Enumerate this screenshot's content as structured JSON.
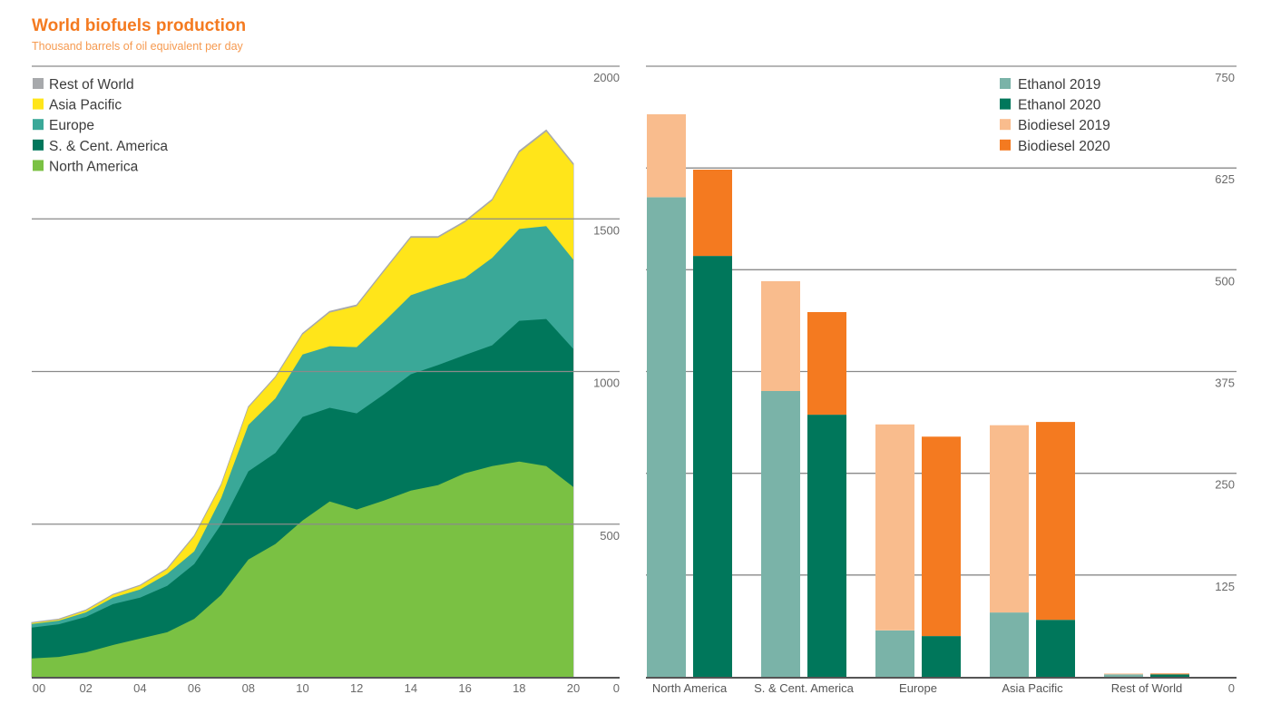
{
  "title": "World biofuels production",
  "subtitle": "Thousand barrels of oil equivalent per day",
  "colors": {
    "rest_of_world": "#a7a9ac",
    "asia_pacific": "#ffe51a",
    "europe": "#3aa898",
    "s_cent_america": "#00775b",
    "north_america": "#7ac143",
    "ethanol_2019": "#7ab3a8",
    "ethanol_2020": "#00775b",
    "biodiesel_2019": "#f9bc8d",
    "biodiesel_2020": "#f47a20",
    "title": "#f47a20"
  },
  "chart_data": [
    {
      "type": "area",
      "stacked": true,
      "x": [
        2000,
        2001,
        2002,
        2003,
        2004,
        2005,
        2006,
        2007,
        2008,
        2009,
        2010,
        2011,
        2012,
        2013,
        2014,
        2015,
        2016,
        2017,
        2018,
        2019,
        2020
      ],
      "xtick_labels": [
        "00",
        "02",
        "04",
        "06",
        "08",
        "10",
        "12",
        "14",
        "16",
        "18",
        "20"
      ],
      "ylim": [
        0,
        2000
      ],
      "yticks": [
        "0",
        "500",
        "1000",
        "1500",
        "2000"
      ],
      "ytick_values": [
        0,
        500,
        1000,
        1500,
        2000
      ],
      "y_axis_side": "right",
      "grid": true,
      "legend_position": "top-left",
      "series": [
        {
          "name": "North America",
          "key": "north_america",
          "values": [
            60,
            65,
            80,
            104,
            125,
            146,
            190,
            268,
            384,
            435,
            512,
            574,
            548,
            577,
            610,
            628,
            667,
            690,
            705,
            690,
            622
          ]
        },
        {
          "name": "S. & Cent. America",
          "key": "s_cent_america",
          "values": [
            101,
            107,
            116,
            134,
            134,
            152,
            179,
            232,
            289,
            298,
            339,
            307,
            315,
            348,
            381,
            393,
            387,
            396,
            461,
            482,
            452
          ]
        },
        {
          "name": "Europe",
          "key": "europe",
          "values": [
            12,
            12,
            15,
            21,
            27,
            39,
            42,
            86,
            152,
            179,
            205,
            202,
            217,
            238,
            259,
            259,
            253,
            286,
            301,
            304,
            292
          ]
        },
        {
          "name": "Asia Pacific",
          "key": "asia_pacific",
          "values": [
            3,
            3,
            6,
            9,
            12,
            15,
            48,
            42,
            57,
            68,
            65,
            110,
            134,
            164,
            188,
            158,
            182,
            188,
            250,
            310,
            310
          ]
        },
        {
          "name": "Rest of World",
          "key": "rest_of_world",
          "values": [
            2,
            2,
            2,
            2,
            2,
            3,
            3,
            3,
            3,
            3,
            4,
            4,
            4,
            4,
            4,
            4,
            4,
            4,
            5,
            5,
            5
          ]
        }
      ],
      "legend": [
        "Rest of World",
        "Asia Pacific",
        "Europe",
        "S. & Cent. America",
        "North America"
      ]
    },
    {
      "type": "bar",
      "stacked": true,
      "categories": [
        "North America",
        "S. & Cent. America",
        "Europe",
        "Asia Pacific",
        "Rest of World"
      ],
      "ylim": [
        0,
        750
      ],
      "yticks": [
        "0",
        "125",
        "250",
        "375",
        "500",
        "625",
        "750"
      ],
      "ytick_values": [
        0,
        125,
        250,
        375,
        500,
        625,
        750
      ],
      "y_axis_side": "right",
      "grid": true,
      "legend_position": "top-right",
      "groups": [
        {
          "year": "2019",
          "stack": [
            {
              "name": "Ethanol 2019",
              "key": "ethanol_2019",
              "values": [
                589,
                351,
                57,
                79,
                3
              ]
            },
            {
              "name": "Biodiesel 2019",
              "key": "biodiesel_2019",
              "values": [
                102,
                135,
                253,
                230,
                1
              ]
            }
          ]
        },
        {
          "year": "2020",
          "stack": [
            {
              "name": "Ethanol 2020",
              "key": "ethanol_2020",
              "values": [
                517,
                322,
                50,
                70,
                3
              ]
            },
            {
              "name": "Biodiesel 2020",
              "key": "biodiesel_2020",
              "values": [
                106,
                126,
                245,
                243,
                1
              ]
            }
          ]
        }
      ],
      "legend": [
        "Ethanol 2019",
        "Ethanol 2020",
        "Biodiesel 2019",
        "Biodiesel 2020"
      ]
    }
  ]
}
